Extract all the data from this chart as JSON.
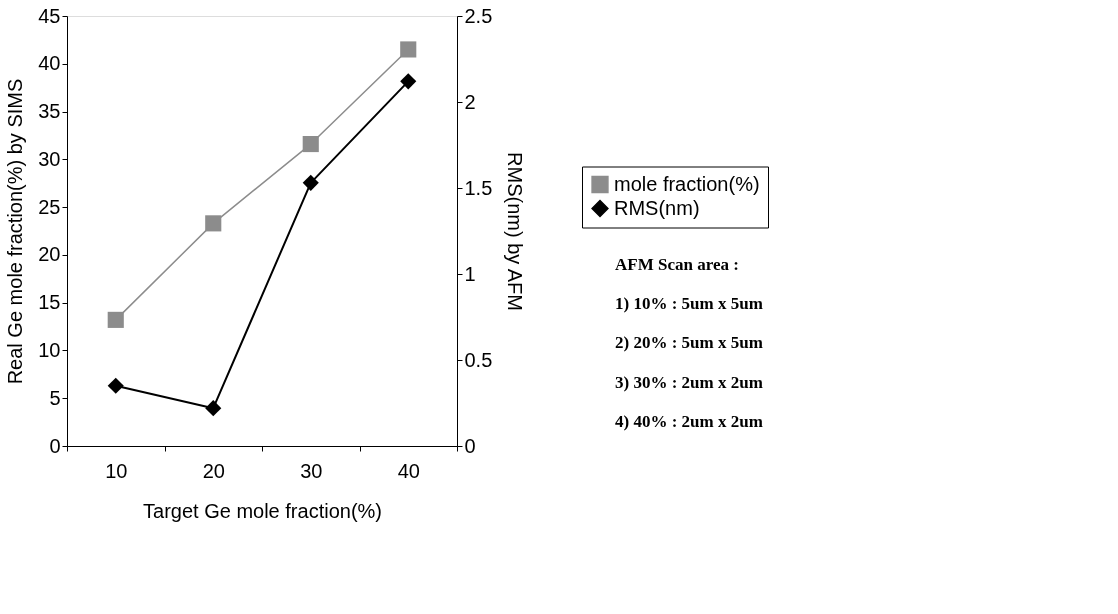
{
  "chart_data": {
    "type": "line",
    "xlabel": "Target Ge mole fraction(%)",
    "ylabel": "Real Ge mole fraction(%) by SIMS",
    "y2label": "RMS(nm) by AFM",
    "categories": [
      "10",
      "20",
      "30",
      "40"
    ],
    "series": [
      {
        "name": "mole fraction(%)",
        "color": "#8c8c8c",
        "marker": "square",
        "values": [
          13.2,
          23.3,
          31.6,
          41.5
        ]
      },
      {
        "name": "RMS(nm)",
        "color": "#000000",
        "marker": "diamond",
        "axis": "y2",
        "values": [
          0.35,
          0.22,
          1.53,
          2.12
        ]
      }
    ],
    "ylim": [
      0,
      45
    ],
    "yticks": [
      0,
      5,
      10,
      15,
      20,
      25,
      30,
      35,
      40,
      45
    ],
    "y2lim": [
      0,
      2.5
    ],
    "y2ticks": [
      0,
      0.5,
      1,
      1.5,
      2,
      2.5
    ],
    "grid": false,
    "legend": "right",
    "line_style": "solid",
    "annotations": [
      "AFM Scan area :",
      "1)     10% : 5um x 5um",
      "2)     20% : 5um x 5um",
      "3)     30% : 2um x 2um",
      "4)     40% : 2um x 2um"
    ]
  }
}
